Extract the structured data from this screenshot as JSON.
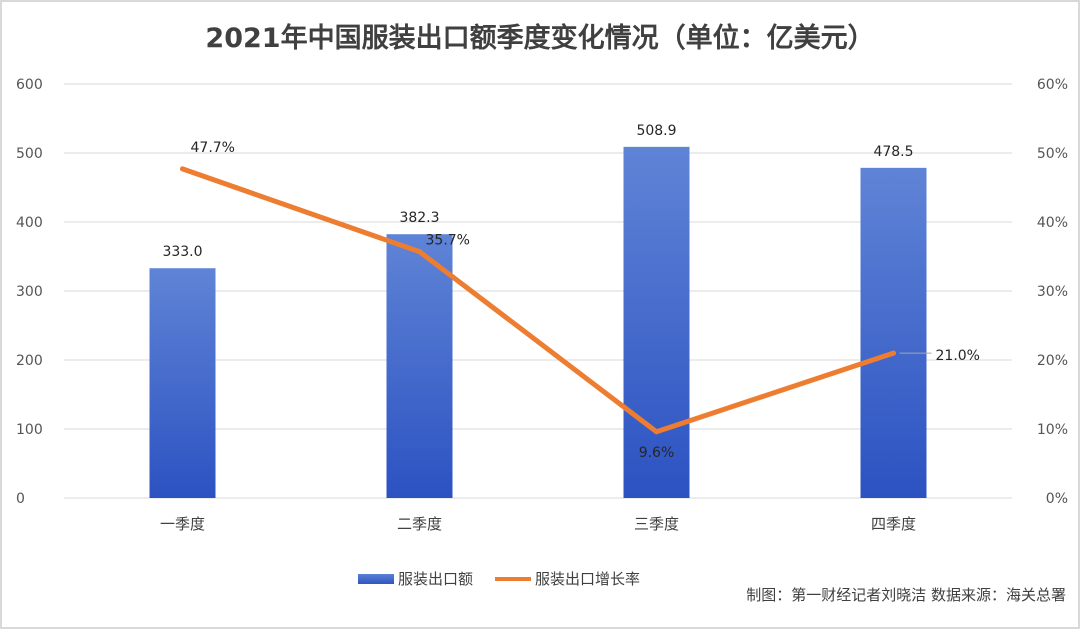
{
  "chart_data": {
    "type": "bar",
    "title": "2021年中国服装出口额季度变化情况（单位：亿美元）",
    "categories": [
      "一季度",
      "二季度",
      "三季度",
      "四季度"
    ],
    "series": [
      {
        "name": "服装出口额",
        "type": "bar",
        "axis": "left",
        "values": [
          333.0,
          382.3,
          508.9,
          478.5
        ],
        "labels": [
          "333.0",
          "382.3",
          "508.9",
          "478.5"
        ],
        "color": "#4472c4"
      },
      {
        "name": "服装出口增长率",
        "type": "line",
        "axis": "right",
        "values": [
          47.7,
          35.7,
          9.6,
          21.0
        ],
        "labels": [
          "47.7%",
          "35.7%",
          "9.6%",
          "21.0%"
        ],
        "color": "#ed7d31"
      }
    ],
    "ylim": [
      0,
      600
    ],
    "yticks": [
      "0",
      "100",
      "200",
      "300",
      "400",
      "500",
      "600"
    ],
    "y2lim": [
      0,
      60
    ],
    "y2ticks": [
      "0%",
      "10%",
      "20%",
      "30%",
      "40%",
      "50%",
      "60%"
    ],
    "grid": true,
    "legend_position": "bottom"
  },
  "source_note": "制图：第一财经记者刘晓洁 数据来源：海关总署"
}
